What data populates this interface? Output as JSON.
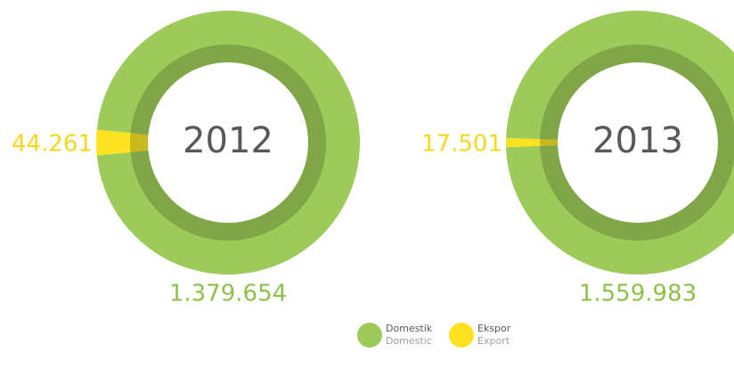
{
  "chart_data": [
    {
      "type": "pie",
      "title": "2012",
      "categories": [
        "Domestik",
        "Ekspor"
      ],
      "values": [
        1379654,
        44261
      ],
      "value_labels": [
        "1.379.654",
        "44.261"
      ],
      "colors": [
        "#9ccb5a",
        "#ffe21f"
      ]
    },
    {
      "type": "pie",
      "title": "2013",
      "categories": [
        "Domestik",
        "Ekspor"
      ],
      "values": [
        1559983,
        17501
      ],
      "value_labels": [
        "1.559.983",
        "17.501"
      ],
      "colors": [
        "#9ccb5a",
        "#ffe21f"
      ]
    }
  ],
  "legend": [
    {
      "name": "Domestik",
      "subtitle": "Domestic",
      "color": "#9ccb5a"
    },
    {
      "name": "Ekspor",
      "subtitle": "Export",
      "color": "#ffe21f"
    }
  ]
}
